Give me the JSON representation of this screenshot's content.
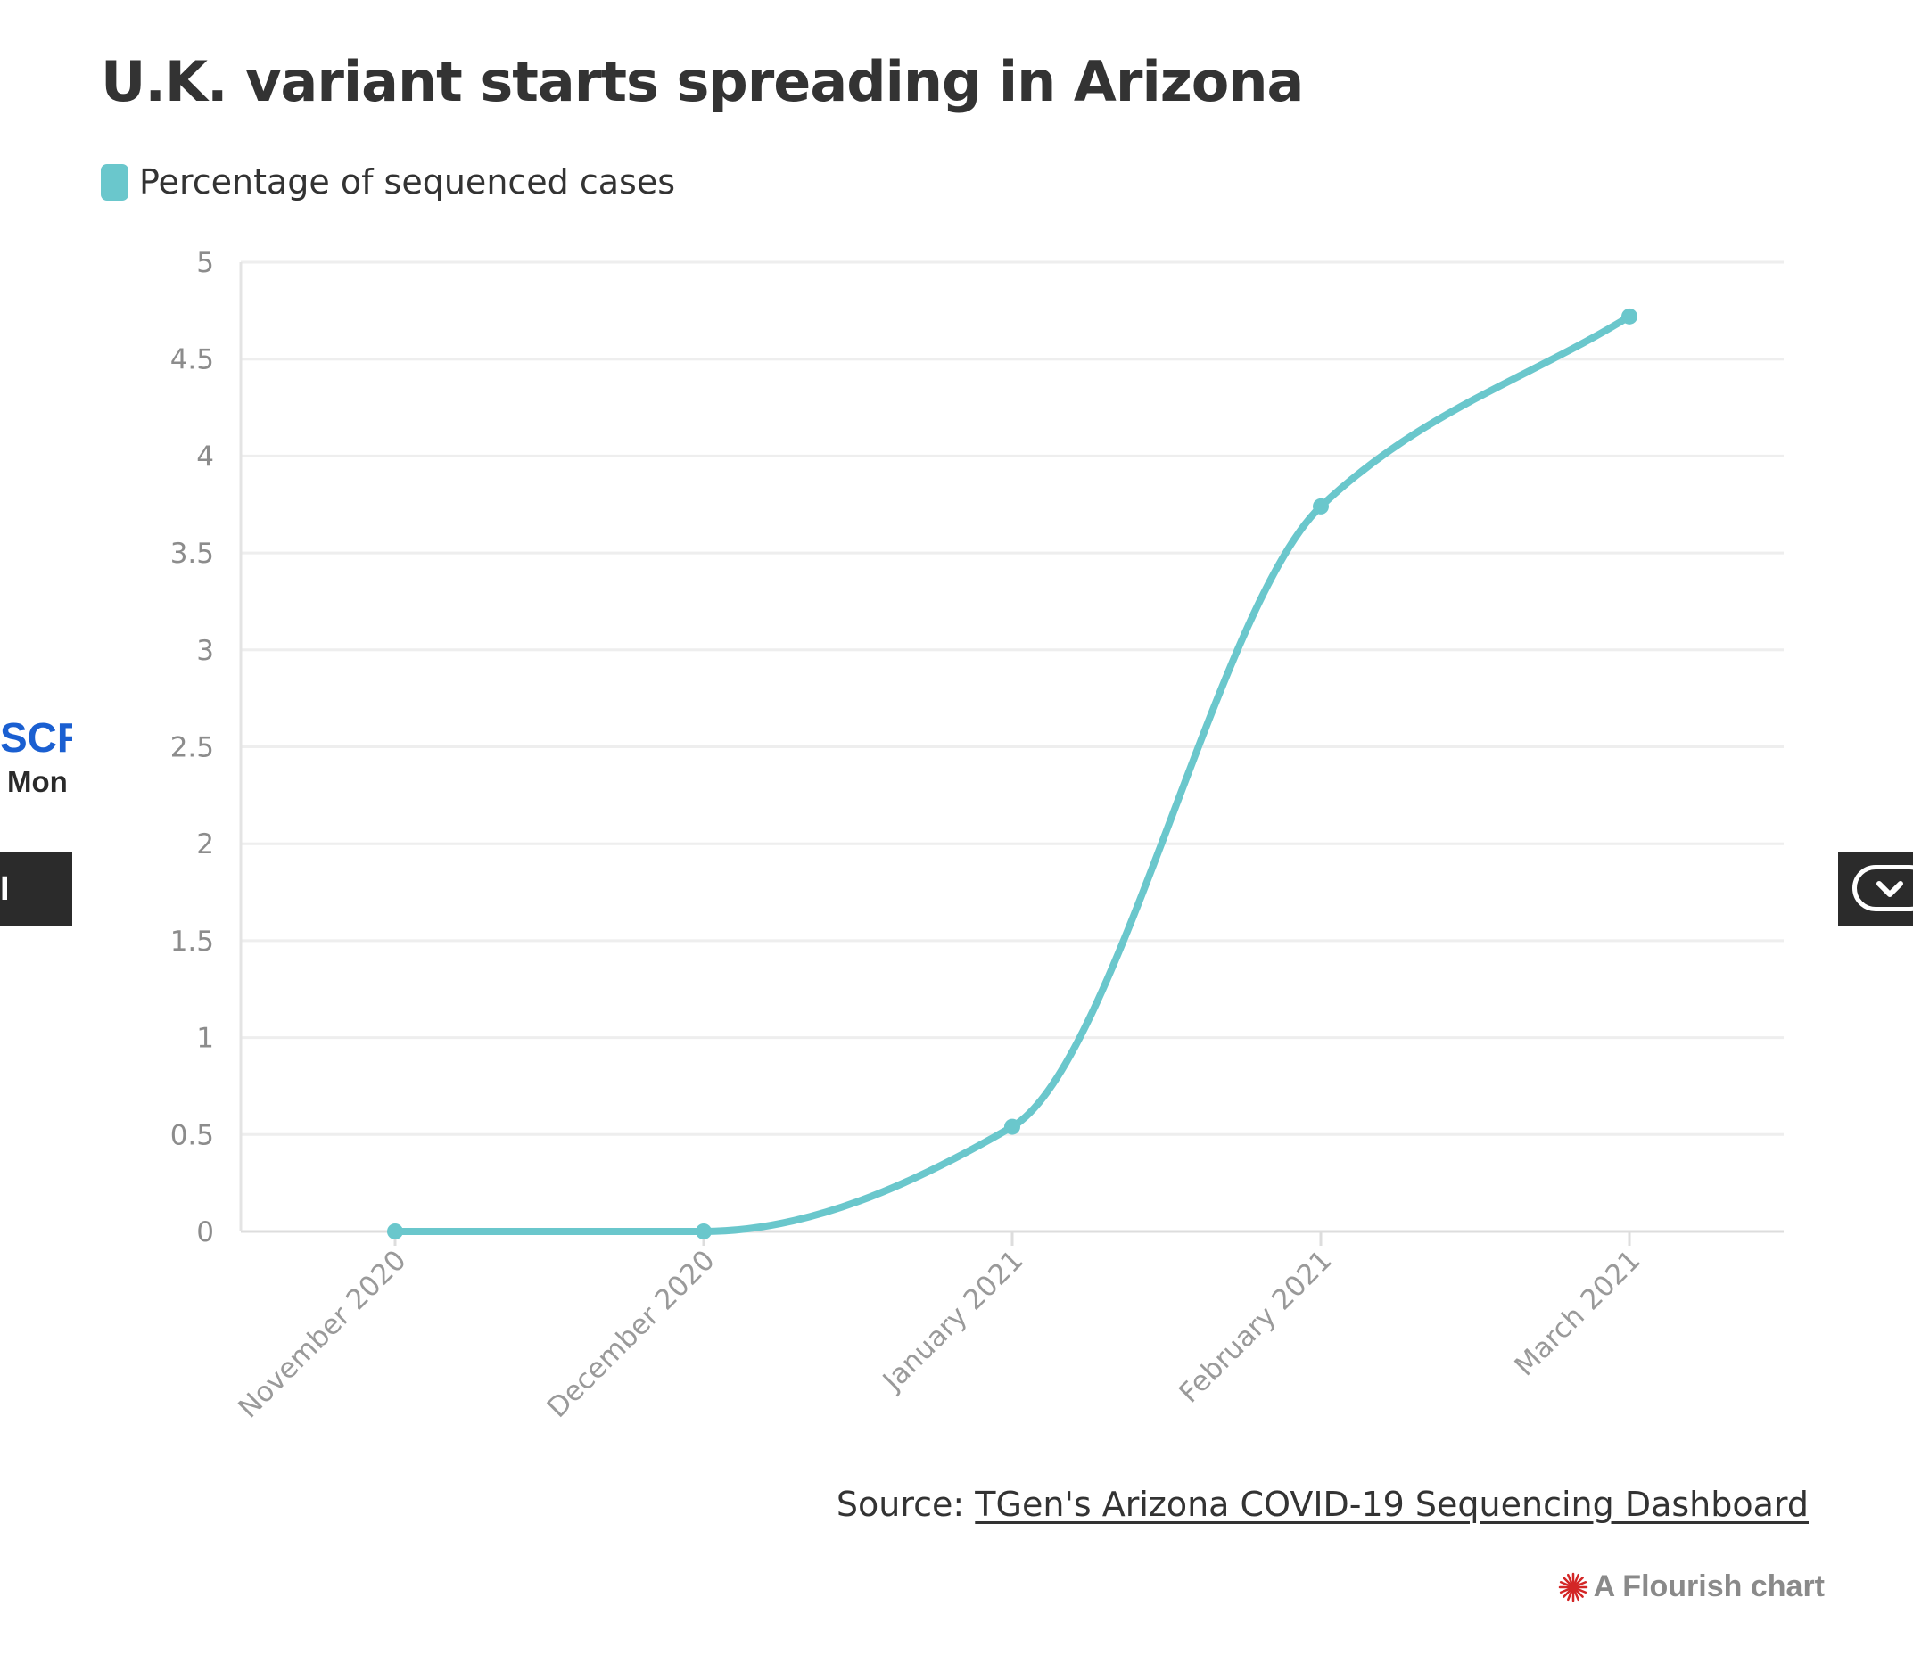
{
  "background": {
    "left_headline": "SCR",
    "left_subline": "Mon",
    "left_bar_text": "I S"
  },
  "colors": {
    "series": "#6ac7cc",
    "title": "#333333",
    "axis_text": "#8c8c8c",
    "grid": "#eeeeee",
    "flourish_logo": "#d32626"
  },
  "chart_data": {
    "type": "line",
    "title": "U.K. variant starts spreading in Arizona",
    "categories": [
      "November 2020",
      "December 2020",
      "January 2021",
      "February 2021",
      "March 2021"
    ],
    "series": [
      {
        "name": "Percentage of sequenced cases",
        "values": [
          0,
          0,
          0.54,
          3.74,
          4.72
        ]
      }
    ],
    "yticks": [
      "0",
      "0.5",
      "1",
      "1.5",
      "2",
      "2.5",
      "3",
      "3.5",
      "4",
      "4.5",
      "5"
    ],
    "ylim": [
      0,
      5
    ],
    "xlabel": "",
    "ylabel": "",
    "grid": true,
    "legend": "top-left",
    "curve": "smooth"
  },
  "footer": {
    "source_prefix": "Source: ",
    "source_link": "TGen's Arizona COVID-19 Sequencing Dashboard",
    "credit": "A Flourish chart",
    "credit_icon": "flourish-logo-icon"
  }
}
